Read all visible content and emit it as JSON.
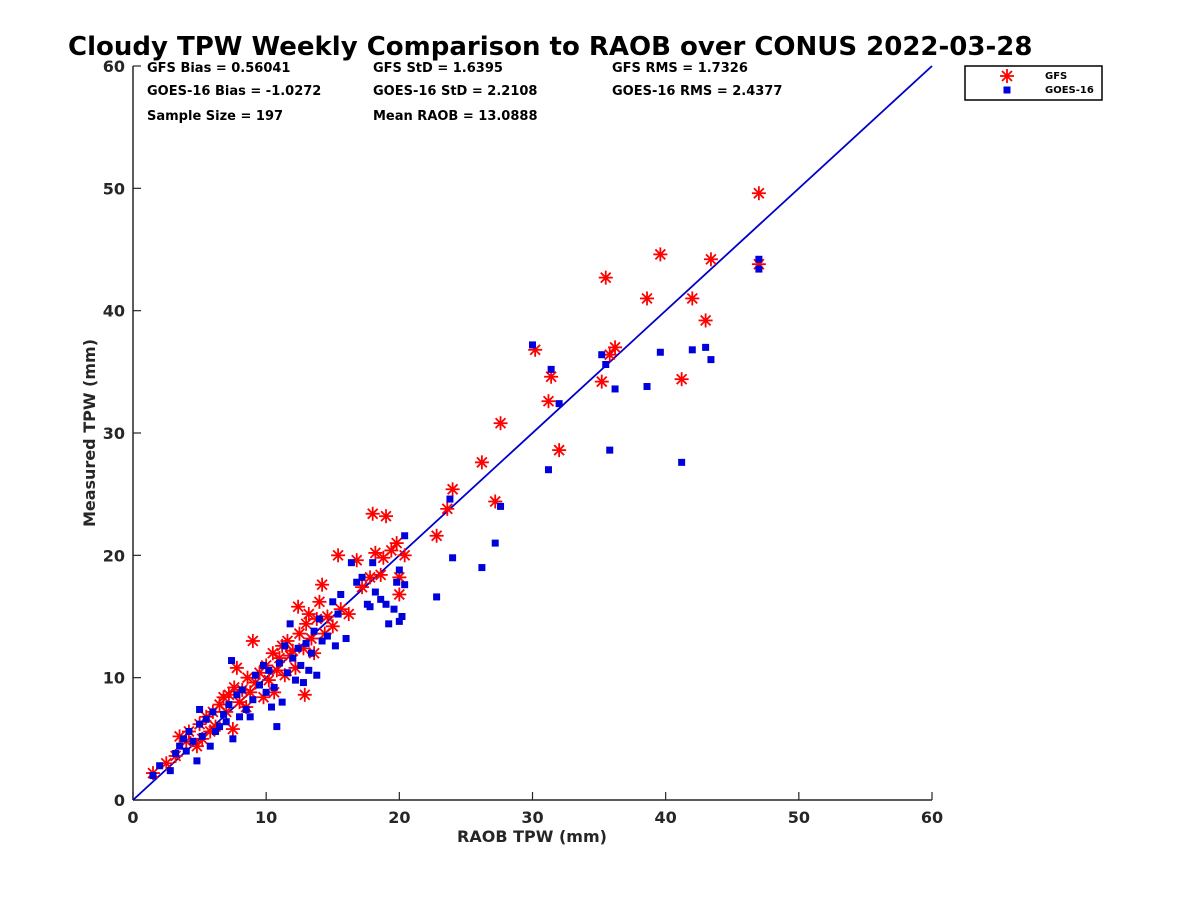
{
  "chart_data": {
    "type": "scatter",
    "title": "Cloudy TPW Weekly Comparison to RAOB over CONUS 2022-03-28",
    "xlabel": "RAOB TPW (mm)",
    "ylabel": "Measured TPW (mm)",
    "xlim": [
      0,
      60
    ],
    "ylim": [
      0,
      60
    ],
    "xticks": [
      "0",
      "10",
      "20",
      "30",
      "40",
      "50",
      "60"
    ],
    "yticks": [
      "0",
      "10",
      "20",
      "30",
      "40",
      "50",
      "60"
    ],
    "grid": false,
    "legend_position": "outside-top-right",
    "reference_line": {
      "x": [
        0,
        60
      ],
      "y": [
        0,
        60
      ],
      "color": "#0000cc"
    },
    "stats": [
      "GFS Bias = 0.56041",
      "GFS StD = 1.6395",
      "GFS RMS = 1.7326",
      "GOES-16 Bias = -1.0272",
      "GOES-16 StD = 2.2108",
      "GOES-16 RMS = 2.4377",
      "Sample Size = 197",
      "Mean RAOB = 13.0888"
    ],
    "series": [
      {
        "name": "GFS",
        "marker": "asterisk",
        "color": "#ff0000",
        "points": [
          [
            1.5,
            2.2
          ],
          [
            2.5,
            3.0
          ],
          [
            3.2,
            3.6
          ],
          [
            3.5,
            5.2
          ],
          [
            4.0,
            4.8
          ],
          [
            4.2,
            5.6
          ],
          [
            4.8,
            4.4
          ],
          [
            5.0,
            6.2
          ],
          [
            5.2,
            5.0
          ],
          [
            5.5,
            6.8
          ],
          [
            5.8,
            5.6
          ],
          [
            6.0,
            7.2
          ],
          [
            6.2,
            6.0
          ],
          [
            6.5,
            7.8
          ],
          [
            6.8,
            8.4
          ],
          [
            7.0,
            7.2
          ],
          [
            7.2,
            8.6
          ],
          [
            7.5,
            5.8
          ],
          [
            7.6,
            9.2
          ],
          [
            7.8,
            10.8
          ],
          [
            8.0,
            8.0
          ],
          [
            8.2,
            9.0
          ],
          [
            8.5,
            7.6
          ],
          [
            8.6,
            10.0
          ],
          [
            8.8,
            8.8
          ],
          [
            9.0,
            13.0
          ],
          [
            9.2,
            9.6
          ],
          [
            9.5,
            10.4
          ],
          [
            9.8,
            8.4
          ],
          [
            10.0,
            11.0
          ],
          [
            10.2,
            9.8
          ],
          [
            10.5,
            12.0
          ],
          [
            10.6,
            8.8
          ],
          [
            10.8,
            10.6
          ],
          [
            11.0,
            11.6
          ],
          [
            11.2,
            12.6
          ],
          [
            11.4,
            10.2
          ],
          [
            11.6,
            13.0
          ],
          [
            11.8,
            11.8
          ],
          [
            12.0,
            12.2
          ],
          [
            12.2,
            10.8
          ],
          [
            12.4,
            15.8
          ],
          [
            12.5,
            13.6
          ],
          [
            12.8,
            12.4
          ],
          [
            12.9,
            8.6
          ],
          [
            13.0,
            14.4
          ],
          [
            13.2,
            15.2
          ],
          [
            13.4,
            13.2
          ],
          [
            13.6,
            12.0
          ],
          [
            13.8,
            14.8
          ],
          [
            14.0,
            16.2
          ],
          [
            14.2,
            17.6
          ],
          [
            14.4,
            13.6
          ],
          [
            14.6,
            15.0
          ],
          [
            15.0,
            14.2
          ],
          [
            15.4,
            20.0
          ],
          [
            15.6,
            15.6
          ],
          [
            16.2,
            15.2
          ],
          [
            16.8,
            19.6
          ],
          [
            17.2,
            17.4
          ],
          [
            17.8,
            18.2
          ],
          [
            18.0,
            23.4
          ],
          [
            18.2,
            20.2
          ],
          [
            18.6,
            18.4
          ],
          [
            18.8,
            19.8
          ],
          [
            19.0,
            23.2
          ],
          [
            19.4,
            20.4
          ],
          [
            19.8,
            21.0
          ],
          [
            20.0,
            16.8
          ],
          [
            20.0,
            18.2
          ],
          [
            20.4,
            20.0
          ],
          [
            22.8,
            21.6
          ],
          [
            23.6,
            23.8
          ],
          [
            24.0,
            25.4
          ],
          [
            26.2,
            27.6
          ],
          [
            27.2,
            24.4
          ],
          [
            27.6,
            30.8
          ],
          [
            30.2,
            36.8
          ],
          [
            31.2,
            32.6
          ],
          [
            31.4,
            34.6
          ],
          [
            32.0,
            28.6
          ],
          [
            35.2,
            34.2
          ],
          [
            35.5,
            42.7
          ],
          [
            35.8,
            36.4
          ],
          [
            36.2,
            37.0
          ],
          [
            38.6,
            41.0
          ],
          [
            39.6,
            44.6
          ],
          [
            41.2,
            34.4
          ],
          [
            42.0,
            41.0
          ],
          [
            43.0,
            39.2
          ],
          [
            43.4,
            44.2
          ],
          [
            47.0,
            43.8
          ],
          [
            47.0,
            49.6
          ]
        ]
      },
      {
        "name": "GOES-16",
        "marker": "square",
        "color": "#0000dd",
        "points": [
          [
            1.5,
            2.0
          ],
          [
            2.0,
            2.8
          ],
          [
            2.8,
            2.4
          ],
          [
            3.2,
            3.8
          ],
          [
            3.5,
            4.4
          ],
          [
            3.8,
            5.0
          ],
          [
            4.0,
            4.0
          ],
          [
            4.2,
            5.6
          ],
          [
            4.5,
            4.8
          ],
          [
            4.8,
            3.2
          ],
          [
            5.0,
            7.4
          ],
          [
            5.0,
            6.2
          ],
          [
            5.2,
            5.2
          ],
          [
            5.5,
            6.6
          ],
          [
            5.8,
            4.4
          ],
          [
            6.0,
            7.2
          ],
          [
            6.2,
            5.6
          ],
          [
            6.5,
            6.0
          ],
          [
            6.8,
            7.0
          ],
          [
            7.0,
            6.4
          ],
          [
            7.2,
            7.8
          ],
          [
            7.4,
            11.4
          ],
          [
            7.5,
            5.0
          ],
          [
            7.8,
            8.6
          ],
          [
            8.0,
            6.8
          ],
          [
            8.2,
            9.0
          ],
          [
            8.5,
            7.4
          ],
          [
            8.8,
            6.8
          ],
          [
            9.0,
            8.2
          ],
          [
            9.2,
            10.2
          ],
          [
            9.5,
            9.4
          ],
          [
            9.8,
            11.0
          ],
          [
            10.0,
            8.8
          ],
          [
            10.2,
            10.6
          ],
          [
            10.4,
            7.6
          ],
          [
            10.6,
            9.2
          ],
          [
            10.8,
            6.0
          ],
          [
            11.0,
            11.2
          ],
          [
            11.2,
            8.0
          ],
          [
            11.4,
            12.6
          ],
          [
            11.6,
            10.4
          ],
          [
            11.8,
            14.4
          ],
          [
            12.0,
            11.6
          ],
          [
            12.2,
            9.8
          ],
          [
            12.4,
            12.4
          ],
          [
            12.6,
            11.0
          ],
          [
            12.8,
            9.6
          ],
          [
            13.0,
            12.8
          ],
          [
            13.2,
            10.6
          ],
          [
            13.4,
            12.0
          ],
          [
            13.6,
            13.8
          ],
          [
            13.8,
            10.2
          ],
          [
            14.0,
            14.8
          ],
          [
            14.2,
            13.0
          ],
          [
            14.6,
            13.4
          ],
          [
            15.0,
            16.2
          ],
          [
            15.2,
            12.6
          ],
          [
            15.4,
            15.2
          ],
          [
            15.6,
            16.8
          ],
          [
            16.0,
            13.2
          ],
          [
            16.4,
            19.4
          ],
          [
            16.8,
            17.8
          ],
          [
            17.2,
            18.2
          ],
          [
            17.6,
            16.0
          ],
          [
            17.8,
            15.8
          ],
          [
            18.0,
            19.4
          ],
          [
            18.2,
            17.0
          ],
          [
            18.6,
            16.4
          ],
          [
            19.0,
            16.0
          ],
          [
            19.2,
            14.4
          ],
          [
            19.6,
            15.6
          ],
          [
            19.8,
            17.8
          ],
          [
            20.0,
            18.8
          ],
          [
            20.0,
            14.6
          ],
          [
            20.2,
            15.0
          ],
          [
            20.4,
            21.6
          ],
          [
            20.4,
            17.6
          ],
          [
            22.8,
            16.6
          ],
          [
            23.8,
            24.6
          ],
          [
            24.0,
            19.8
          ],
          [
            26.2,
            19.0
          ],
          [
            27.2,
            21.0
          ],
          [
            27.6,
            24.0
          ],
          [
            30.0,
            37.2
          ],
          [
            31.2,
            27.0
          ],
          [
            31.4,
            35.2
          ],
          [
            32.0,
            32.4
          ],
          [
            35.2,
            36.4
          ],
          [
            35.5,
            35.6
          ],
          [
            35.8,
            28.6
          ],
          [
            36.2,
            33.6
          ],
          [
            38.6,
            33.8
          ],
          [
            39.6,
            36.6
          ],
          [
            41.2,
            27.6
          ],
          [
            42.0,
            36.8
          ],
          [
            43.0,
            37.0
          ],
          [
            43.4,
            36.0
          ],
          [
            47.0,
            43.4
          ],
          [
            47.0,
            44.2
          ]
        ]
      }
    ]
  }
}
